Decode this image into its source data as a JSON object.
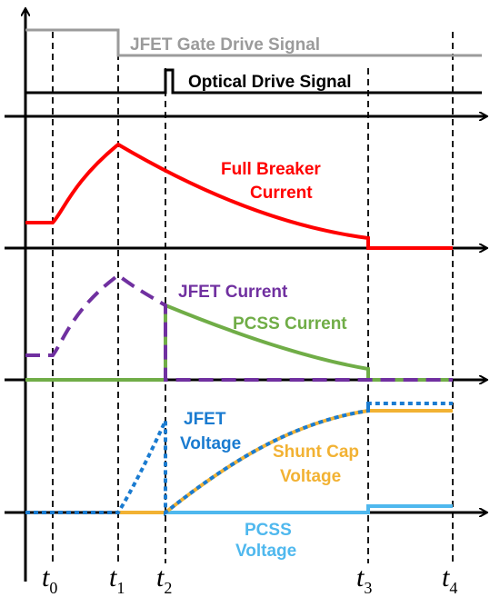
{
  "labels": {
    "jfet_gate_drive": "JFET Gate Drive Signal",
    "optical_drive": "Optical Drive Signal",
    "full_breaker_line1": "Full Breaker",
    "full_breaker_line2": "Current",
    "jfet_current": "JFET Current",
    "pcss_current": "PCSS Current",
    "jfet_voltage_line1": "JFET",
    "jfet_voltage_line2": "Voltage",
    "shunt_cap_line1": "Shunt Cap",
    "shunt_cap_line2": "Voltage",
    "pcss_voltage_line1": "PCSS",
    "pcss_voltage_line2": "Voltage"
  },
  "time_markers": [
    {
      "base": "t",
      "sub": "0"
    },
    {
      "base": "t",
      "sub": "1"
    },
    {
      "base": "t",
      "sub": "2"
    },
    {
      "base": "t",
      "sub": "3"
    },
    {
      "base": "t",
      "sub": "4"
    }
  ],
  "colors": {
    "axis": "#000000",
    "gate_signal": "#9b9b9b",
    "optical_signal": "#000000",
    "breaker_current": "#ff0000",
    "jfet_current": "#7030a0",
    "pcss_current": "#70ad47",
    "jfet_voltage": "#1a7bd0",
    "shunt_cap_voltage": "#f2b233",
    "pcss_voltage": "#4fb8ee"
  }
}
